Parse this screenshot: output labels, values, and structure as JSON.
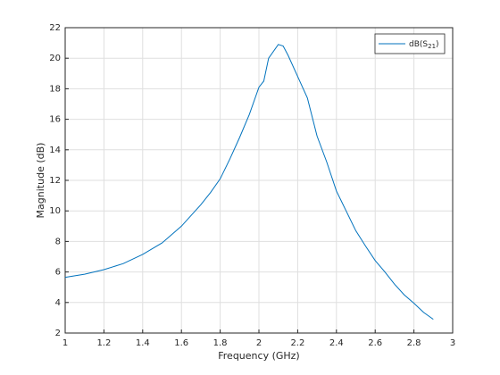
{
  "chart_data": {
    "type": "line",
    "x_label": "Frequency (GHz)",
    "y_label": "Magnitude (dB)",
    "x": [
      1.0,
      1.1,
      1.2,
      1.3,
      1.4,
      1.5,
      1.6,
      1.7,
      1.75,
      1.8,
      1.85,
      1.9,
      1.95,
      2.0,
      2.025,
      2.05,
      2.1,
      2.125,
      2.15,
      2.2,
      2.25,
      2.3,
      2.35,
      2.4,
      2.45,
      2.5,
      2.55,
      2.6,
      2.65,
      2.7,
      2.75,
      2.8,
      2.85,
      2.9
    ],
    "series": [
      {
        "name": "dB(S21)",
        "color": "#0072bd",
        "values": [
          5.65,
          5.85,
          6.15,
          6.55,
          7.15,
          7.9,
          9.0,
          10.4,
          11.2,
          12.1,
          13.4,
          14.8,
          16.3,
          18.1,
          18.5,
          20.0,
          20.9,
          20.8,
          20.2,
          18.8,
          17.4,
          14.9,
          13.2,
          11.3,
          10.0,
          8.7,
          7.7,
          6.75,
          6.0,
          5.2,
          4.5,
          3.95,
          3.35,
          2.9
        ]
      }
    ],
    "xlim": [
      1,
      3
    ],
    "ylim": [
      2,
      22
    ],
    "xticks": [
      1,
      1.2,
      1.4,
      1.6,
      1.8,
      2,
      2.2,
      2.4,
      2.6,
      2.8,
      3
    ],
    "yticks": [
      2,
      4,
      6,
      8,
      10,
      12,
      14,
      16,
      18,
      20,
      22
    ],
    "grid": true,
    "legend": "upper-right"
  }
}
